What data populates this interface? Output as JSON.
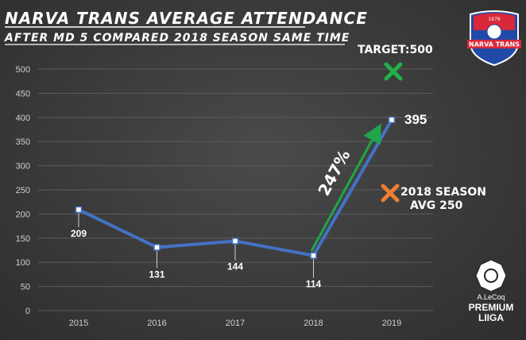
{
  "title": "NARVA TRANS AVERAGE ATTENDANCE",
  "subtitle": "AFTER MD 5 COMPARED 2018 SEASON SAME TIME",
  "target_label": "TARGET:500",
  "growth_label": "247%",
  "season_label_line1": "2018 SEASON",
  "season_label_line2": "AVG 250",
  "logo_text": "NARVA TRANS",
  "logo_year": "1979",
  "league_brand": "A.LeCoq",
  "league_name1": "PREMIUM",
  "league_name2": "LIIGA",
  "colors": {
    "line": "#4472c4",
    "target_marker": "#21b14b",
    "season_marker": "#ed7d31",
    "arrow": "#1fa64a",
    "logo_red": "#d8283a",
    "logo_blue": "#1f4aa8"
  },
  "chart_data": {
    "type": "line",
    "categories": [
      "2015",
      "2016",
      "2017",
      "2018",
      "2019"
    ],
    "values": [
      209,
      131,
      144,
      114,
      395
    ],
    "data_labels": [
      "209",
      "131",
      "144",
      "114",
      "395"
    ],
    "ylim": [
      0,
      500
    ],
    "yticks": [
      "0",
      "50",
      "100",
      "150",
      "200",
      "250",
      "300",
      "350",
      "400",
      "450",
      "500"
    ],
    "grid": true,
    "markers": [
      {
        "name": "target",
        "x": "2019",
        "y": 500
      },
      {
        "name": "2018 season avg",
        "x": "2019",
        "y": 250
      }
    ]
  }
}
